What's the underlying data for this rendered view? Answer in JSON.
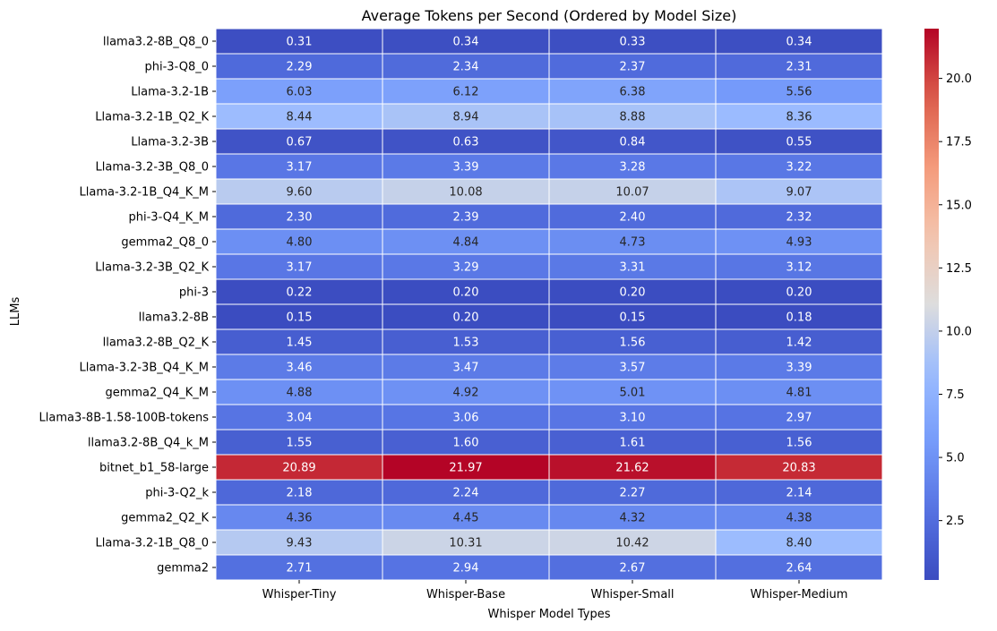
{
  "chart_data": {
    "type": "heatmap",
    "title": "Average Tokens per Second (Ordered by Model Size)",
    "xlabel": "Whisper Model Types",
    "ylabel": "LLMs",
    "x_categories": [
      "Whisper-Tiny",
      "Whisper-Base",
      "Whisper-Small",
      "Whisper-Medium"
    ],
    "y_categories": [
      "llama3.2-8B_Q8_0",
      "phi-3-Q8_0",
      "Llama-3.2-1B",
      "Llama-3.2-1B_Q2_K",
      "Llama-3.2-3B",
      "Llama-3.2-3B_Q8_0",
      "Llama-3.2-1B_Q4_K_M",
      "phi-3-Q4_K_M",
      "gemma2_Q8_0",
      "Llama-3.2-3B_Q2_K",
      "phi-3",
      "llama3.2-8B",
      "llama3.2-8B_Q2_K",
      "Llama-3.2-3B_Q4_K_M",
      "gemma2_Q4_K_M",
      "Llama3-8B-1.58-100B-tokens",
      "llama3.2-8B_Q4_k_M",
      "bitnet_b1_58-large",
      "phi-3-Q2_k",
      "gemma2_Q2_K",
      "Llama-3.2-1B_Q8_0",
      "gemma2"
    ],
    "values": [
      [
        0.31,
        0.34,
        0.33,
        0.34
      ],
      [
        2.29,
        2.34,
        2.37,
        2.31
      ],
      [
        6.03,
        6.12,
        6.38,
        5.56
      ],
      [
        8.44,
        8.94,
        8.88,
        8.36
      ],
      [
        0.67,
        0.63,
        0.84,
        0.55
      ],
      [
        3.17,
        3.39,
        3.28,
        3.22
      ],
      [
        9.6,
        10.08,
        10.07,
        9.07
      ],
      [
        2.3,
        2.39,
        2.4,
        2.32
      ],
      [
        4.8,
        4.84,
        4.73,
        4.93
      ],
      [
        3.17,
        3.29,
        3.31,
        3.12
      ],
      [
        0.22,
        0.2,
        0.2,
        0.2
      ],
      [
        0.15,
        0.2,
        0.15,
        0.18
      ],
      [
        1.45,
        1.53,
        1.56,
        1.42
      ],
      [
        3.46,
        3.47,
        3.57,
        3.39
      ],
      [
        4.88,
        4.92,
        5.01,
        4.81
      ],
      [
        3.04,
        3.06,
        3.1,
        2.97
      ],
      [
        1.55,
        1.6,
        1.61,
        1.56
      ],
      [
        20.89,
        21.97,
        21.62,
        20.83
      ],
      [
        2.18,
        2.24,
        2.27,
        2.14
      ],
      [
        4.36,
        4.45,
        4.32,
        4.38
      ],
      [
        9.43,
        10.31,
        10.42,
        8.4
      ],
      [
        2.71,
        2.94,
        2.67,
        2.64
      ]
    ],
    "value_format": "2 decimals",
    "colormap": "coolwarm",
    "colorbar": {
      "range": [
        0.15,
        21.97
      ],
      "ticks": [
        2.5,
        5.0,
        7.5,
        10.0,
        12.5,
        15.0,
        17.5,
        20.0
      ],
      "tick_labels": [
        "2.5",
        "5.0",
        "7.5",
        "10.0",
        "12.5",
        "15.0",
        "17.5",
        "20.0"
      ]
    },
    "colors": {
      "cell_border": "#ffffff",
      "text_on_dark": "#ffffff",
      "text_on_light": "#262626",
      "low": "#3b4cc0",
      "mid": "#dddddd",
      "high": "#b40426"
    }
  }
}
